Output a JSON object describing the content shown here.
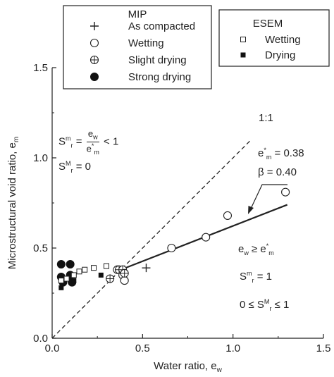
{
  "chart_data": {
    "type": "scatter",
    "xlabel": "Water ratio, e",
    "xlabel_sub": "w",
    "ylabel": "Microstructural void ratio, e",
    "ylabel_sub": "m",
    "xlim": [
      0,
      1.5
    ],
    "ylim": [
      0,
      1.5
    ],
    "x_ticks": [
      0,
      0.5,
      1.0,
      1.5
    ],
    "x_tick_labels": [
      "0.0",
      "0.5",
      "1.0",
      "1.5"
    ],
    "y_ticks": [
      0,
      0.5,
      1.0,
      1.5
    ],
    "y_tick_labels": [
      "0.0",
      "0.5",
      "1.0",
      "1.5"
    ],
    "grid": false,
    "legend_groups": [
      {
        "title": "MIP",
        "placement": "top-left",
        "entries": [
          {
            "label": "As compacted",
            "marker": "plus"
          },
          {
            "label": "Wetting",
            "marker": "open-circle"
          },
          {
            "label": "Slight drying",
            "marker": "crossed-circle"
          },
          {
            "label": "Strong drying",
            "marker": "filled-circle"
          }
        ]
      },
      {
        "title": "ESEM",
        "placement": "top-right",
        "entries": [
          {
            "label": "Wetting",
            "marker": "open-square"
          },
          {
            "label": "Drying",
            "marker": "filled-square"
          }
        ]
      }
    ],
    "series": [
      {
        "name": "As compacted",
        "marker": "plus",
        "points": [
          [
            0.52,
            0.39
          ]
        ]
      },
      {
        "name": "Wetting",
        "marker": "open-circle",
        "points": [
          [
            0.36,
            0.38
          ],
          [
            0.39,
            0.35
          ],
          [
            0.4,
            0.32
          ],
          [
            0.66,
            0.5
          ],
          [
            0.85,
            0.56
          ],
          [
            0.97,
            0.68
          ],
          [
            1.29,
            0.81
          ]
        ]
      },
      {
        "name": "Slight drying",
        "marker": "crossed-circle",
        "points": [
          [
            0.32,
            0.33
          ],
          [
            0.37,
            0.38
          ],
          [
            0.39,
            0.38
          ],
          [
            0.4,
            0.36
          ]
        ]
      },
      {
        "name": "Strong drying",
        "marker": "filled-circle",
        "points": [
          [
            0.05,
            0.41
          ],
          [
            0.1,
            0.41
          ],
          [
            0.05,
            0.34
          ],
          [
            0.1,
            0.35
          ],
          [
            0.06,
            0.31
          ],
          [
            0.11,
            0.31
          ]
        ]
      },
      {
        "name": "Wetting",
        "marker": "open-square",
        "points": [
          [
            0.05,
            0.32
          ],
          [
            0.08,
            0.33
          ],
          [
            0.12,
            0.35
          ],
          [
            0.15,
            0.37
          ],
          [
            0.18,
            0.38
          ],
          [
            0.23,
            0.39
          ],
          [
            0.3,
            0.4
          ]
        ]
      },
      {
        "name": "Drying",
        "marker": "filled-square",
        "points": [
          [
            0.05,
            0.28
          ],
          [
            0.12,
            0.32
          ],
          [
            0.27,
            0.35
          ]
        ]
      }
    ],
    "lines": [
      {
        "label": "1:1",
        "style": "dashed",
        "points": [
          [
            0,
            0
          ],
          [
            1.1,
            1.1
          ]
        ]
      },
      {
        "style": "solid",
        "points": [
          [
            0.38,
            0.38
          ],
          [
            1.3,
            0.74
          ]
        ]
      }
    ],
    "annotations": {
      "one_to_one": "1:1",
      "srm_lhs": "S",
      "srm_lhs_sub": "r",
      "srm_lhs_sup": "m",
      "srm_eq": "=",
      "srm_num": "e",
      "srm_num_sub": "w",
      "srm_den": "e",
      "srm_den_sub": "m",
      "srm_den_sup": "*",
      "srm_rhs": "< 1",
      "srM_lhs": "S",
      "srM_lhs_sub": "r",
      "srM_lhs_sup": "M",
      "srM_rhs": "= 0",
      "em_star": "e",
      "em_star_sub": "m",
      "em_star_sup": "*",
      "em_star_val": "= 0.38",
      "beta": "β = 0.40",
      "cond1_a": "e",
      "cond1_a_sub": "w",
      "cond1_op": "≥ e",
      "cond1_b_sub": "m",
      "cond1_b_sup": "*",
      "cond2_lhs": "S",
      "cond2_lhs_sub": "r",
      "cond2_lhs_sup": "m",
      "cond2_rhs": "= 1",
      "cond3_lhs": "0 ≤ S",
      "cond3_sub": "r",
      "cond3_sup": "M",
      "cond3_rhs": "≤ 1"
    }
  }
}
